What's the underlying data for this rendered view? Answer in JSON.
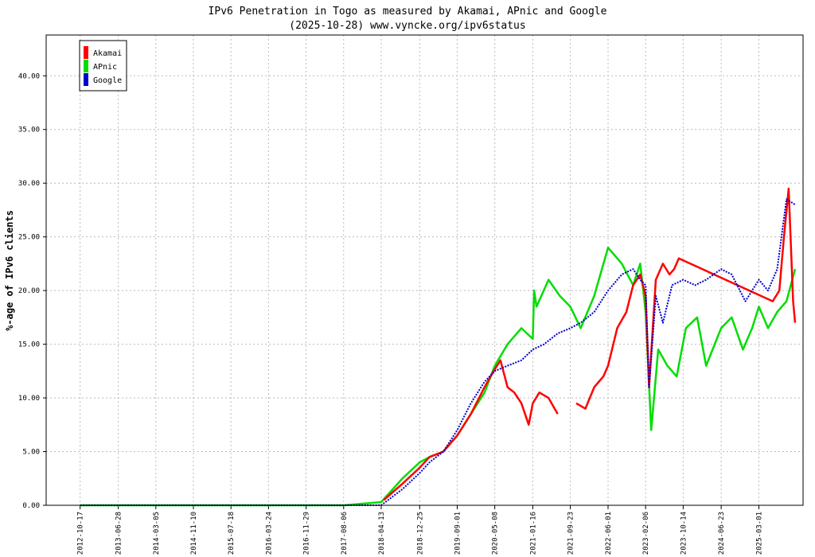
{
  "chart_data": {
    "type": "line",
    "title": "IPv6 Penetration in Togo as measured by Akamai, APnic and Google",
    "subtitle": "(2025-10-28) www.vyncke.org/ipv6status",
    "ylabel": "%-age of IPv6 clients",
    "xlabel": "",
    "xlim": [
      "2012-03-05",
      "2025-12-20"
    ],
    "ylim": [
      0,
      43.8
    ],
    "grid": true,
    "legend_position": "top-left",
    "x_ticks": [
      "2012-10-17",
      "2013-06-28",
      "2014-03-05",
      "2014-11-10",
      "2015-07-18",
      "2016-03-24",
      "2016-11-29",
      "2017-08-06",
      "2018-04-13",
      "2018-12-25",
      "2019-09-01",
      "2020-05-08",
      "2021-01-16",
      "2021-09-23",
      "2022-06-01",
      "2023-02-06",
      "2023-10-14",
      "2024-06-23",
      "2025-03-01"
    ],
    "y_ticks": [
      "0.00",
      "5.00",
      "10.00",
      "15.00",
      "20.00",
      "25.00",
      "30.00",
      "35.00",
      "40.00"
    ],
    "series": [
      {
        "name": "Akamai",
        "color": "#ff0000",
        "x": [
          "2018-05-01",
          "2018-09-01",
          "2018-12-25",
          "2019-03-01",
          "2019-06-01",
          "2019-09-01",
          "2019-12-01",
          "2020-03-01",
          "2020-05-01",
          "2020-06-15",
          "2020-08-01",
          "2020-09-15",
          "2020-11-01",
          "2020-12-20",
          "2021-01-16",
          "2021-03-01",
          "2021-05-01",
          "2021-07-01",
          "2021-09-01",
          "2021-11-01",
          "2022-01-01",
          "2022-03-01",
          "2022-05-01",
          "2022-06-01",
          "2022-08-01",
          "2022-10-01",
          "2022-11-15",
          "2023-01-01",
          "2023-02-06",
          "2023-03-01",
          "2023-04-15",
          "2023-06-01",
          "2023-07-15",
          "2023-08-15",
          "2023-09-15",
          "2025-06-01",
          "2025-07-15",
          "2025-08-15",
          "2025-09-15",
          "2025-10-15",
          "2025-10-28"
        ],
        "values": [
          0.5,
          2.0,
          3.5,
          4.5,
          5.0,
          6.5,
          8.5,
          11.0,
          12.5,
          13.5,
          11.0,
          10.5,
          9.5,
          7.5,
          9.5,
          10.5,
          10.0,
          8.5,
          null,
          9.5,
          9.0,
          11.0,
          12.0,
          13.0,
          16.5,
          18.0,
          20.5,
          21.5,
          19.5,
          11.0,
          21.0,
          22.5,
          21.5,
          22.0,
          23.0,
          19.0,
          20.0,
          25.0,
          29.5,
          19.0,
          17.0
        ]
      },
      {
        "name": "APnic",
        "color": "#00dd00",
        "x": [
          "2012-10-17",
          "2017-08-06",
          "2018-04-13",
          "2018-09-01",
          "2018-12-25",
          "2019-03-01",
          "2019-06-01",
          "2019-09-01",
          "2019-12-01",
          "2020-03-01",
          "2020-05-08",
          "2020-08-01",
          "2020-11-01",
          "2021-01-16",
          "2021-01-25",
          "2021-02-10",
          "2021-05-01",
          "2021-07-15",
          "2021-09-23",
          "2021-12-01",
          "2022-03-01",
          "2022-06-01",
          "2022-09-01",
          "2022-11-15",
          "2023-01-01",
          "2023-02-06",
          "2023-03-15",
          "2023-05-01",
          "2023-07-01",
          "2023-09-01",
          "2023-11-01",
          "2024-01-15",
          "2024-03-15",
          "2024-06-23",
          "2024-09-01",
          "2024-11-15",
          "2025-01-15",
          "2025-03-01",
          "2025-05-01",
          "2025-07-01",
          "2025-09-01",
          "2025-10-28"
        ],
        "values": [
          0.0,
          0.0,
          0.3,
          2.5,
          4.0,
          4.5,
          5.0,
          6.5,
          8.5,
          10.5,
          13.0,
          15.0,
          16.5,
          15.5,
          20.0,
          18.5,
          21.0,
          19.5,
          18.5,
          16.5,
          19.5,
          24.0,
          22.5,
          20.5,
          22.5,
          18.0,
          7.0,
          14.5,
          13.0,
          12.0,
          16.5,
          17.5,
          13.0,
          16.5,
          17.5,
          14.5,
          16.5,
          18.5,
          16.5,
          18.0,
          19.0,
          22.0
        ]
      },
      {
        "name": "Google",
        "color": "#0000cc",
        "x": [
          "2012-10-17",
          "2018-04-13",
          "2018-09-01",
          "2018-12-25",
          "2019-03-01",
          "2019-06-01",
          "2019-09-01",
          "2019-12-01",
          "2020-03-01",
          "2020-05-08",
          "2020-08-01",
          "2020-11-01",
          "2021-01-16",
          "2021-04-01",
          "2021-07-01",
          "2021-09-23",
          "2021-12-01",
          "2022-03-01",
          "2022-06-01",
          "2022-09-01",
          "2022-11-15",
          "2023-01-01",
          "2023-02-06",
          "2023-03-01",
          "2023-04-15",
          "2023-06-01",
          "2023-08-01",
          "2023-10-14",
          "2024-01-01",
          "2024-03-15",
          "2024-06-23",
          "2024-09-01",
          "2024-12-01",
          "2025-03-01",
          "2025-05-01",
          "2025-07-01",
          "2025-09-01",
          "2025-10-28"
        ],
        "values": [
          0.0,
          0.0,
          1.5,
          3.0,
          4.0,
          5.0,
          7.0,
          9.5,
          11.5,
          12.5,
          13.0,
          13.5,
          14.5,
          15.0,
          16.0,
          16.5,
          17.0,
          18.0,
          20.0,
          21.5,
          22.0,
          21.0,
          20.5,
          11.0,
          19.5,
          17.0,
          20.5,
          21.0,
          20.5,
          21.0,
          22.0,
          21.5,
          19.0,
          21.0,
          20.0,
          22.0,
          28.5,
          28.0
        ]
      }
    ]
  }
}
